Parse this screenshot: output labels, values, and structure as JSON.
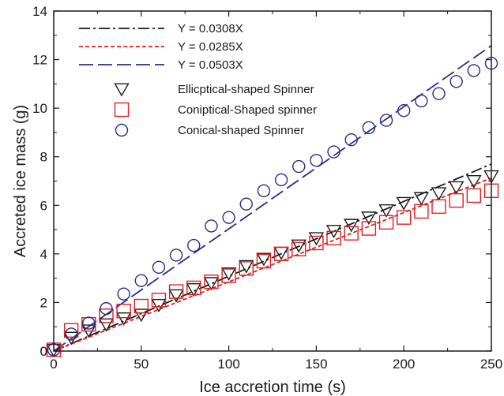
{
  "chart_data": {
    "type": "scatter",
    "title": "",
    "xlabel": "Ice accretion time (s)",
    "ylabel": "Accreted ice mass (g)",
    "xlim": [
      0,
      250
    ],
    "ylim": [
      0,
      14
    ],
    "xticks": [
      0,
      50,
      100,
      150,
      200,
      250
    ],
    "yticks": [
      0,
      2,
      4,
      6,
      8,
      10,
      12,
      14
    ],
    "grid": false,
    "legend_position": "top-left",
    "fit_lines": [
      {
        "name": "Y = 0.0308X",
        "slope": 0.0308,
        "color": "#1a1a1a",
        "style": "dash-dot"
      },
      {
        "name": "Y = 0.0285X",
        "slope": 0.0285,
        "color": "#e02020",
        "style": "short-dash"
      },
      {
        "name": "Y = 0.0503X",
        "slope": 0.0503,
        "color": "#2b2b8c",
        "style": "long-dash"
      }
    ],
    "series": [
      {
        "name": "Ellicptical-shaped Spinner",
        "marker": "triangle-down",
        "color": "#1a1a1a",
        "x": [
          0,
          10,
          20,
          30,
          40,
          50,
          60,
          70,
          80,
          90,
          100,
          110,
          120,
          130,
          140,
          150,
          160,
          170,
          180,
          190,
          200,
          210,
          220,
          230,
          240,
          250
        ],
        "y": [
          0.05,
          0.55,
          0.85,
          1.1,
          1.35,
          1.5,
          1.9,
          2.3,
          2.55,
          2.8,
          3.2,
          3.5,
          3.8,
          4.05,
          4.35,
          4.65,
          4.95,
          5.2,
          5.5,
          5.8,
          6.1,
          6.3,
          6.5,
          6.75,
          7.0,
          7.2
        ]
      },
      {
        "name": "Coniptical-Shaped spinner",
        "marker": "square",
        "color": "#e02020",
        "x": [
          0,
          10,
          20,
          30,
          40,
          50,
          60,
          70,
          80,
          90,
          100,
          110,
          120,
          130,
          140,
          150,
          160,
          170,
          180,
          190,
          200,
          210,
          220,
          230,
          240,
          250
        ],
        "y": [
          0.05,
          0.85,
          1.1,
          1.45,
          1.65,
          1.85,
          2.1,
          2.45,
          2.6,
          2.85,
          3.1,
          3.4,
          3.7,
          4.0,
          4.2,
          4.45,
          4.65,
          4.85,
          5.05,
          5.3,
          5.5,
          5.75,
          5.95,
          6.2,
          6.4,
          6.6
        ]
      },
      {
        "name": "Conical-shaped Spinner",
        "marker": "circle",
        "color": "#2b2b8c",
        "x": [
          0,
          10,
          20,
          30,
          40,
          50,
          60,
          70,
          80,
          90,
          100,
          110,
          120,
          130,
          140,
          150,
          160,
          170,
          180,
          190,
          200,
          210,
          220,
          230,
          240,
          250
        ],
        "y": [
          0.05,
          0.7,
          1.15,
          1.75,
          2.35,
          2.9,
          3.45,
          3.95,
          4.35,
          5.15,
          5.5,
          6.05,
          6.6,
          7.05,
          7.6,
          7.85,
          8.2,
          8.7,
          9.2,
          9.5,
          9.9,
          10.3,
          10.6,
          11.1,
          11.55,
          11.85
        ]
      }
    ]
  }
}
